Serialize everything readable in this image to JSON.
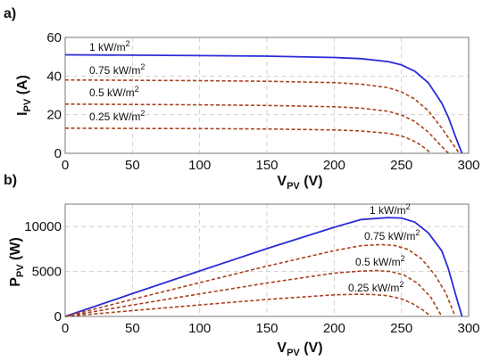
{
  "chart_data": [
    {
      "panel": "a)",
      "type": "line",
      "xlabel": "V",
      "xlabel_sub": "PV",
      "xlabel_unit": " (V)",
      "ylabel": "I",
      "ylabel_sub": "PV",
      "ylabel_unit": " (A)",
      "xlim": [
        0,
        300
      ],
      "ylim": [
        0,
        60
      ],
      "xticks": [
        0,
        50,
        100,
        150,
        200,
        250,
        300
      ],
      "yticks": [
        0,
        20,
        40,
        60
      ],
      "grid": true,
      "series": [
        {
          "name": "1 kW/m",
          "name_sup": "2",
          "color": "#2b2bd8",
          "style": "solid",
          "x": [
            0,
            50,
            100,
            150,
            200,
            220,
            240,
            250,
            260,
            270,
            280,
            285,
            290,
            295
          ],
          "y": [
            51,
            50.8,
            50.6,
            50.3,
            49.6,
            49,
            47.5,
            45.8,
            42.5,
            36.5,
            26,
            18.5,
            9,
            0
          ]
        },
        {
          "name": "0.75 kW/m",
          "name_sup": "2",
          "color": "#a8421f",
          "style": "dashed",
          "x": [
            0,
            50,
            100,
            150,
            200,
            220,
            240,
            250,
            260,
            270,
            280,
            287,
            293
          ],
          "y": [
            38,
            37.8,
            37.6,
            37.3,
            36.6,
            35.8,
            34,
            31.8,
            28,
            22,
            13,
            6,
            0
          ]
        },
        {
          "name": "0.5 kW/m",
          "name_sup": "2",
          "color": "#a8421f",
          "style": "dashed",
          "x": [
            0,
            50,
            100,
            150,
            200,
            220,
            240,
            250,
            260,
            270,
            278,
            285
          ],
          "y": [
            25.5,
            25.3,
            25.1,
            24.8,
            24.1,
            23.4,
            21.8,
            19.8,
            16.5,
            11,
            5,
            0
          ]
        },
        {
          "name": "0.25 kW/m",
          "name_sup": "2",
          "color": "#a8421f",
          "style": "dashed",
          "x": [
            0,
            50,
            100,
            150,
            200,
            220,
            240,
            250,
            258,
            265,
            272
          ],
          "y": [
            13,
            12.9,
            12.8,
            12.6,
            12.1,
            11.6,
            10.4,
            9,
            6.8,
            4,
            0
          ]
        }
      ]
    },
    {
      "panel": "b)",
      "type": "line",
      "xlabel": "V",
      "xlabel_sub": "PV",
      "xlabel_unit": " (V)",
      "ylabel": "P",
      "ylabel_sub": "PV",
      "ylabel_unit": " (W)",
      "xlim": [
        0,
        300
      ],
      "ylim": [
        0,
        12500
      ],
      "xticks": [
        0,
        50,
        100,
        150,
        200,
        250,
        300
      ],
      "yticks": [
        0,
        5000,
        10000
      ],
      "grid": true,
      "series": [
        {
          "name": "1 kW/m",
          "name_sup": "2",
          "color": "#2b2bd8",
          "style": "solid",
          "x": [
            0,
            50,
            100,
            150,
            200,
            220,
            240,
            250,
            260,
            270,
            280,
            285,
            290,
            295
          ],
          "y": [
            0,
            2540,
            5060,
            7545,
            9920,
            10780,
            11000,
            10950,
            10500,
            9300,
            7300,
            5250,
            2600,
            0
          ]
        },
        {
          "name": "0.75 kW/m",
          "name_sup": "2",
          "color": "#a8421f",
          "style": "dashed",
          "x": [
            0,
            50,
            100,
            150,
            200,
            220,
            235,
            245,
            255,
            265,
            275,
            283,
            290
          ],
          "y": [
            0,
            1890,
            3760,
            5595,
            7320,
            7880,
            8000,
            7900,
            7450,
            6400,
            4600,
            2600,
            0
          ]
        },
        {
          "name": "0.5 kW/m",
          "name_sup": "2",
          "color": "#a8421f",
          "style": "dashed",
          "x": [
            0,
            50,
            100,
            150,
            200,
            220,
            232,
            242,
            252,
            262,
            272,
            280
          ],
          "y": [
            0,
            1265,
            2510,
            3720,
            4820,
            5050,
            5100,
            5000,
            4600,
            3700,
            2100,
            0
          ]
        },
        {
          "name": "0.25 kW/m",
          "name_sup": "2",
          "color": "#a8421f",
          "style": "dashed",
          "x": [
            0,
            50,
            100,
            150,
            200,
            215,
            228,
            240,
            250,
            258,
            266,
            272
          ],
          "y": [
            0,
            645,
            1280,
            1890,
            2400,
            2460,
            2450,
            2300,
            1950,
            1450,
            700,
            0
          ]
        }
      ]
    }
  ]
}
